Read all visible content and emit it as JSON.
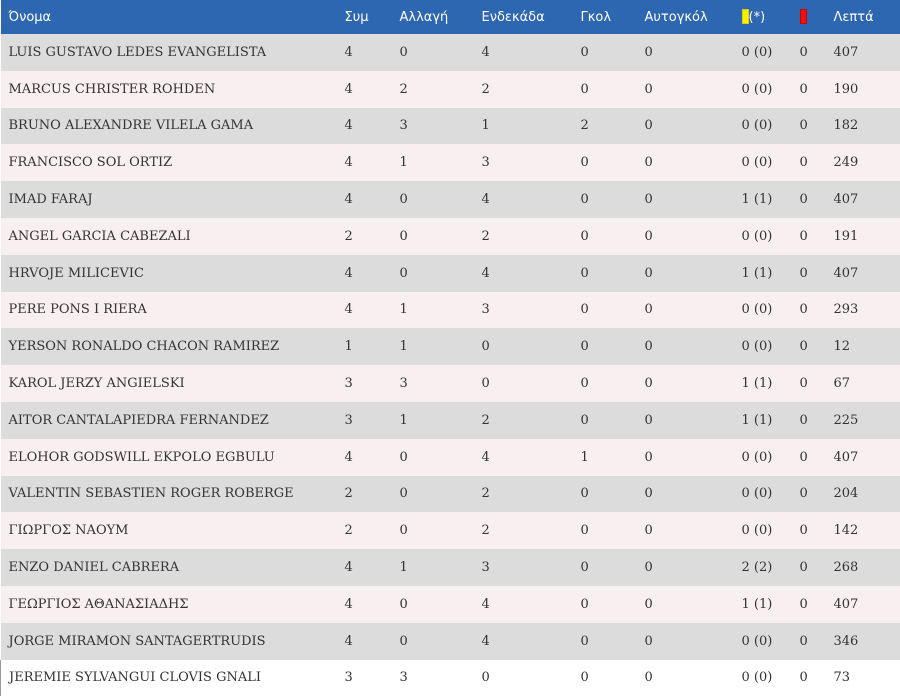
{
  "colors": {
    "header_bg": "#2e67b1",
    "row_odd": "#dcdcdc",
    "row_even": "#f7eff0",
    "yellow_card": "#ffee00",
    "red_card": "#ee1111"
  },
  "headers": {
    "name": "Όνομα",
    "apps": "Συμ",
    "sub": "Αλλαγή",
    "starting": "Ενδεκάδα",
    "goals": "Γκολ",
    "own_goals": "Αυτογκόλ",
    "yellow_suffix": "(*)",
    "minutes": "Λεπτά"
  },
  "icons": {
    "yellow": "yellow-card-icon",
    "red": "red-card-icon"
  },
  "rows": [
    {
      "name": "LUIS GUSTAVO LEDES EVANGELISTA",
      "apps": "4",
      "sub": "0",
      "starting": "4",
      "goals": "0",
      "own_goals": "0",
      "yellow": "0 (0)",
      "red": "0",
      "minutes": "407"
    },
    {
      "name": "MARCUS CHRISTER ROHDEN",
      "apps": "4",
      "sub": "2",
      "starting": "2",
      "goals": "0",
      "own_goals": "0",
      "yellow": "0 (0)",
      "red": "0",
      "minutes": "190"
    },
    {
      "name": "BRUNO ALEXANDRE VILELA GAMA",
      "apps": "4",
      "sub": "3",
      "starting": "1",
      "goals": "2",
      "own_goals": "0",
      "yellow": "0 (0)",
      "red": "0",
      "minutes": "182"
    },
    {
      "name": "FRANCISCO SOL ORTIZ",
      "apps": "4",
      "sub": "1",
      "starting": "3",
      "goals": "0",
      "own_goals": "0",
      "yellow": "0 (0)",
      "red": "0",
      "minutes": "249"
    },
    {
      "name": "IMAD FARAJ",
      "apps": "4",
      "sub": "0",
      "starting": "4",
      "goals": "0",
      "own_goals": "0",
      "yellow": "1 (1)",
      "red": "0",
      "minutes": "407"
    },
    {
      "name": "ANGEL GARCIA CABEZALI",
      "apps": "2",
      "sub": "0",
      "starting": "2",
      "goals": "0",
      "own_goals": "0",
      "yellow": "0 (0)",
      "red": "0",
      "minutes": "191"
    },
    {
      "name": "HRVOJE MILICEVIC",
      "apps": "4",
      "sub": "0",
      "starting": "4",
      "goals": "0",
      "own_goals": "0",
      "yellow": "1 (1)",
      "red": "0",
      "minutes": "407"
    },
    {
      "name": "PERE PONS I RIERA",
      "apps": "4",
      "sub": "1",
      "starting": "3",
      "goals": "0",
      "own_goals": "0",
      "yellow": "0 (0)",
      "red": "0",
      "minutes": "293"
    },
    {
      "name": "YERSON RONALDO CHACON RAMIREZ",
      "apps": "1",
      "sub": "1",
      "starting": "0",
      "goals": "0",
      "own_goals": "0",
      "yellow": "0 (0)",
      "red": "0",
      "minutes": "12"
    },
    {
      "name": "KAROL JERZY ANGIELSKI",
      "apps": "3",
      "sub": "3",
      "starting": "0",
      "goals": "0",
      "own_goals": "0",
      "yellow": "1 (1)",
      "red": "0",
      "minutes": "67"
    },
    {
      "name": "AITOR CANTALAPIEDRA FERNANDEZ",
      "apps": "3",
      "sub": "1",
      "starting": "2",
      "goals": "0",
      "own_goals": "0",
      "yellow": "1 (1)",
      "red": "0",
      "minutes": "225"
    },
    {
      "name": "ELOHOR GODSWILL EKPOLO EGBULU",
      "apps": "4",
      "sub": "0",
      "starting": "4",
      "goals": "1",
      "own_goals": "0",
      "yellow": "0 (0)",
      "red": "0",
      "minutes": "407"
    },
    {
      "name": "VALENTIN SEBASTIEN ROGER ROBERGE",
      "apps": "2",
      "sub": "0",
      "starting": "2",
      "goals": "0",
      "own_goals": "0",
      "yellow": "0 (0)",
      "red": "0",
      "minutes": "204"
    },
    {
      "name": "ΓΙΩΡΓΟΣ ΝΑΟΥΜ",
      "apps": "2",
      "sub": "0",
      "starting": "2",
      "goals": "0",
      "own_goals": "0",
      "yellow": "0 (0)",
      "red": "0",
      "minutes": "142"
    },
    {
      "name": "ENZO DANIEL CABRERA",
      "apps": "4",
      "sub": "1",
      "starting": "3",
      "goals": "0",
      "own_goals": "0",
      "yellow": "2 (2)",
      "red": "0",
      "minutes": "268"
    },
    {
      "name": "ΓΕΩΡΓΙΟΣ ΑΘΑΝΑΣΙΑΔΗΣ",
      "apps": "4",
      "sub": "0",
      "starting": "4",
      "goals": "0",
      "own_goals": "0",
      "yellow": "1 (1)",
      "red": "0",
      "minutes": "407"
    },
    {
      "name": "JORGE MIRAMON SANTAGERTRUDIS",
      "apps": "4",
      "sub": "0",
      "starting": "4",
      "goals": "0",
      "own_goals": "0",
      "yellow": "0 (0)",
      "red": "0",
      "minutes": "346"
    },
    {
      "name": "JEREMIE SYLVANGUI CLOVIS GNALI",
      "apps": "3",
      "sub": "3",
      "starting": "0",
      "goals": "0",
      "own_goals": "0",
      "yellow": "0 (0)",
      "red": "0",
      "minutes": "73"
    }
  ]
}
